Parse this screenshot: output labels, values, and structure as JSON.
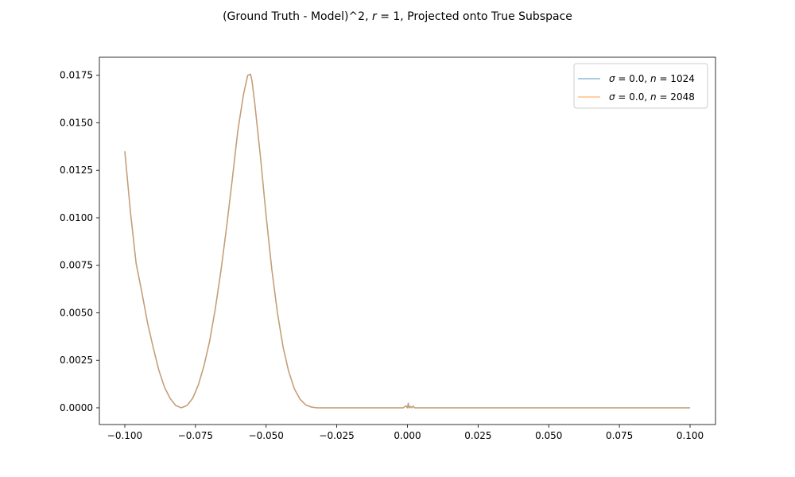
{
  "chart_data": {
    "type": "line",
    "title_parts": [
      "(Ground Truth - Model)^2, ",
      "r",
      " = 1, Projected onto True Subspace"
    ],
    "xlim": [
      -0.109,
      0.109
    ],
    "ylim": [
      -0.00088,
      0.01845
    ],
    "x_ticks": [
      -0.1,
      -0.075,
      -0.05,
      -0.025,
      0.0,
      0.025,
      0.05,
      0.075,
      0.1
    ],
    "x_tick_labels": [
      "−0.100",
      "−0.075",
      "−0.050",
      "−0.025",
      "0.000",
      "0.025",
      "0.050",
      "0.075",
      "0.100"
    ],
    "y_ticks": [
      0.0,
      0.0025,
      0.005,
      0.0075,
      0.01,
      0.0125,
      0.015,
      0.0175
    ],
    "y_tick_labels": [
      "0.0000",
      "0.0025",
      "0.0050",
      "0.0075",
      "0.0100",
      "0.0125",
      "0.0150",
      "0.0175"
    ],
    "legend_position": "upper right",
    "series": [
      {
        "name_parts": [
          "σ",
          " = 0.0, ",
          "n",
          " = 1024"
        ],
        "color": "#1f77b4",
        "points": [
          [
            -0.1,
            0.0135
          ],
          [
            -0.098,
            0.0103
          ],
          [
            -0.096,
            0.0076
          ],
          [
            -0.094,
            0.0061
          ],
          [
            -0.092,
            0.0045
          ],
          [
            -0.09,
            0.0032
          ],
          [
            -0.088,
            0.002
          ],
          [
            -0.086,
            0.0011
          ],
          [
            -0.084,
            0.0005
          ],
          [
            -0.082,
            0.00012
          ],
          [
            -0.08,
            0.0
          ],
          [
            -0.078,
            0.00012
          ],
          [
            -0.076,
            0.0005
          ],
          [
            -0.074,
            0.0012
          ],
          [
            -0.072,
            0.0022
          ],
          [
            -0.07,
            0.0035
          ],
          [
            -0.068,
            0.0052
          ],
          [
            -0.066,
            0.0072
          ],
          [
            -0.064,
            0.0095
          ],
          [
            -0.062,
            0.012
          ],
          [
            -0.06,
            0.0146
          ],
          [
            -0.058,
            0.0165
          ],
          [
            -0.0565,
            0.0175
          ],
          [
            -0.0555,
            0.01755
          ],
          [
            -0.055,
            0.0172
          ],
          [
            -0.054,
            0.016
          ],
          [
            -0.052,
            0.0132
          ],
          [
            -0.05,
            0.0101
          ],
          [
            -0.048,
            0.0073
          ],
          [
            -0.046,
            0.005
          ],
          [
            -0.044,
            0.0032
          ],
          [
            -0.042,
            0.0019
          ],
          [
            -0.04,
            0.001
          ],
          [
            -0.038,
            0.00045
          ],
          [
            -0.036,
            0.00015
          ],
          [
            -0.034,
            4e-05
          ],
          [
            -0.032,
            0.0
          ],
          [
            -0.025,
            0.0
          ],
          [
            -0.01,
            0.0
          ],
          [
            -0.0015,
            0.0
          ],
          [
            -0.001,
            5e-05
          ],
          [
            -0.0005,
            0.0001
          ],
          [
            0.0,
            0.0
          ],
          [
            0.0003,
            0.00025
          ],
          [
            0.0006,
            0.0
          ],
          [
            0.001,
            8e-05
          ],
          [
            0.0015,
            0.0
          ],
          [
            0.002,
            0.0001
          ],
          [
            0.0025,
            0.0
          ],
          [
            0.03,
            0.0
          ],
          [
            0.06,
            0.0
          ],
          [
            0.1,
            0.0
          ]
        ]
      },
      {
        "name_parts": [
          "σ",
          " = 0.0, ",
          "n",
          " = 2048"
        ],
        "color": "#ff7f0e",
        "points": [
          [
            -0.1,
            0.0135
          ],
          [
            -0.098,
            0.0103
          ],
          [
            -0.096,
            0.0076
          ],
          [
            -0.094,
            0.0061
          ],
          [
            -0.092,
            0.0045
          ],
          [
            -0.09,
            0.0032
          ],
          [
            -0.088,
            0.002
          ],
          [
            -0.086,
            0.0011
          ],
          [
            -0.084,
            0.0005
          ],
          [
            -0.082,
            0.00012
          ],
          [
            -0.08,
            0.0
          ],
          [
            -0.078,
            0.00012
          ],
          [
            -0.076,
            0.0005
          ],
          [
            -0.074,
            0.0012
          ],
          [
            -0.072,
            0.0022
          ],
          [
            -0.07,
            0.0035
          ],
          [
            -0.068,
            0.0052
          ],
          [
            -0.066,
            0.0072
          ],
          [
            -0.064,
            0.0095
          ],
          [
            -0.062,
            0.012
          ],
          [
            -0.06,
            0.0146
          ],
          [
            -0.058,
            0.0165
          ],
          [
            -0.0565,
            0.0175
          ],
          [
            -0.0555,
            0.01755
          ],
          [
            -0.055,
            0.0172
          ],
          [
            -0.054,
            0.016
          ],
          [
            -0.052,
            0.0132
          ],
          [
            -0.05,
            0.0101
          ],
          [
            -0.048,
            0.0073
          ],
          [
            -0.046,
            0.005
          ],
          [
            -0.044,
            0.0032
          ],
          [
            -0.042,
            0.0019
          ],
          [
            -0.04,
            0.001
          ],
          [
            -0.038,
            0.00045
          ],
          [
            -0.036,
            0.00015
          ],
          [
            -0.034,
            4e-05
          ],
          [
            -0.032,
            0.0
          ],
          [
            -0.025,
            0.0
          ],
          [
            -0.01,
            0.0
          ],
          [
            -0.0015,
            0.0
          ],
          [
            -0.001,
            5e-05
          ],
          [
            -0.0005,
            0.0001
          ],
          [
            0.0,
            0.0
          ],
          [
            0.0003,
            0.0002
          ],
          [
            0.0006,
            0.0
          ],
          [
            0.001,
            6e-05
          ],
          [
            0.0015,
            0.0
          ],
          [
            0.002,
            8e-05
          ],
          [
            0.0025,
            0.0
          ],
          [
            0.03,
            0.0
          ],
          [
            0.06,
            0.0
          ],
          [
            0.1,
            0.0
          ]
        ]
      }
    ]
  }
}
